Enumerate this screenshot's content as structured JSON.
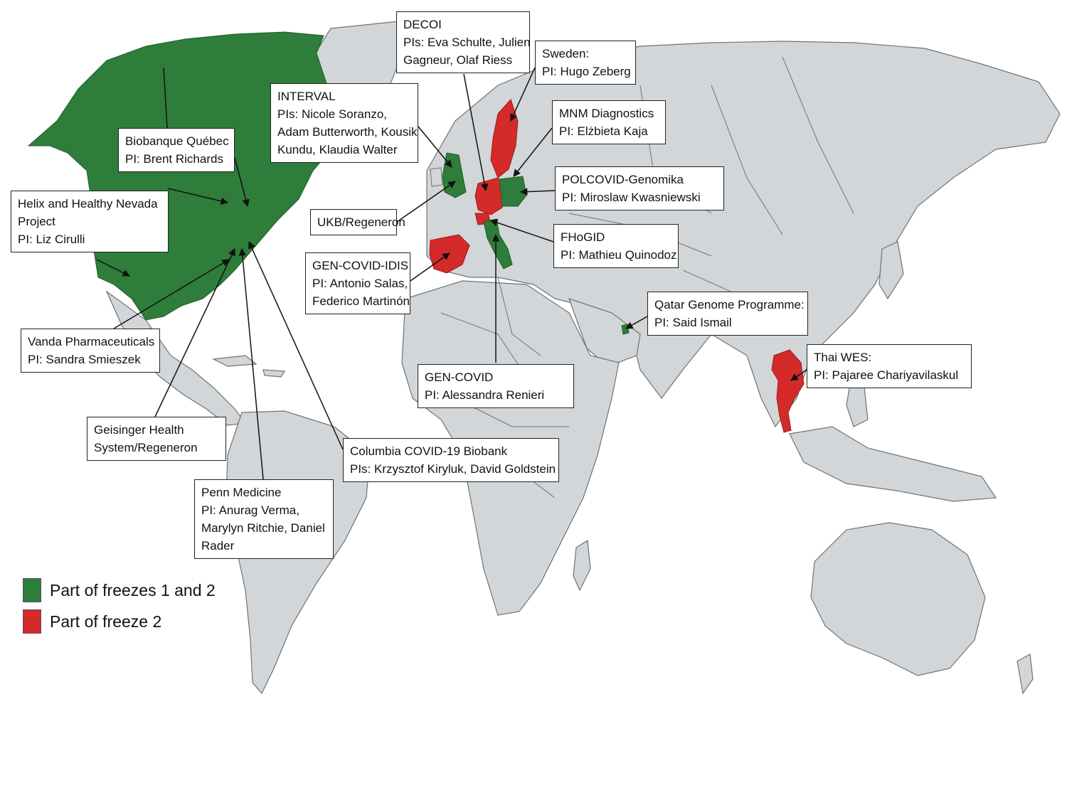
{
  "colors": {
    "ocean": "#ffffff",
    "land": "#d3d6d8",
    "border": "#6f7376",
    "freeze_1_2": "#2e7d3a",
    "freeze_2": "#d42a2a"
  },
  "legend": {
    "items": [
      {
        "label": "Part of freezes 1 and 2",
        "color": "#2e7d3a"
      },
      {
        "label": "Part of freeze 2",
        "color": "#d42a2a"
      }
    ]
  },
  "callouts": {
    "biobanque": {
      "line1": "Biobanque Québec",
      "line2": "PI: Brent Richards"
    },
    "helix": {
      "line1": "Helix and Healthy Nevada",
      "line2": "Project",
      "line3": "PI: Liz Cirulli"
    },
    "vanda": {
      "line1": "Vanda Pharmaceuticals",
      "line2": "PI: Sandra Smieszek"
    },
    "geisinger": {
      "line1": "Geisinger Health",
      "line2": "System/Regeneron"
    },
    "penn": {
      "line1": "Penn Medicine",
      "line2": "PI: Anurag Verma,",
      "line3": "Marylyn Ritchie, Daniel",
      "line4": "Rader"
    },
    "columbia": {
      "line1": "Columbia COVID-19 Biobank",
      "line2": "PIs: Krzysztof Kiryluk, David  Goldstein"
    },
    "interval": {
      "line1": "INTERVAL",
      "line2": "PIs: Nicole Soranzo,",
      "line3": "Adam Butterworth, Kousik",
      "line4": "Kundu, Klaudia Walter"
    },
    "ukb": {
      "line1": "UKB/Regeneron"
    },
    "gen_covid_idis": {
      "line1": "GEN-COVID-IDIS",
      "line2": "PI: Antonio Salas,",
      "line3": "Federico Martinón"
    },
    "decoi": {
      "line1": "DECOI",
      "line2": "PIs: Eva  Schulte, Julien",
      "line3": "Gagneur,  Olaf Riess"
    },
    "sweden": {
      "line1": "Sweden:",
      "line2": "PI: Hugo Zeberg"
    },
    "mnm": {
      "line1": "MNM Diagnostics",
      "line2": "PI: Elżbieta Kaja"
    },
    "polcovid": {
      "line1": "POLCOVID-Genomika",
      "line2": "PI: Miroslaw Kwasniewski"
    },
    "fhogid": {
      "line1": "FHoGID",
      "line2": "PI: Mathieu Quinodoz"
    },
    "gen_covid": {
      "line1": "GEN-COVID",
      "line2": "PI: Alessandra Renieri"
    },
    "qatar": {
      "line1": "Qatar Genome Programme:",
      "line2": "PI: Said Ismail"
    },
    "thai": {
      "line1": "Thai WES:",
      "line2": "PI: Pajaree Chariyavilaskul"
    }
  }
}
